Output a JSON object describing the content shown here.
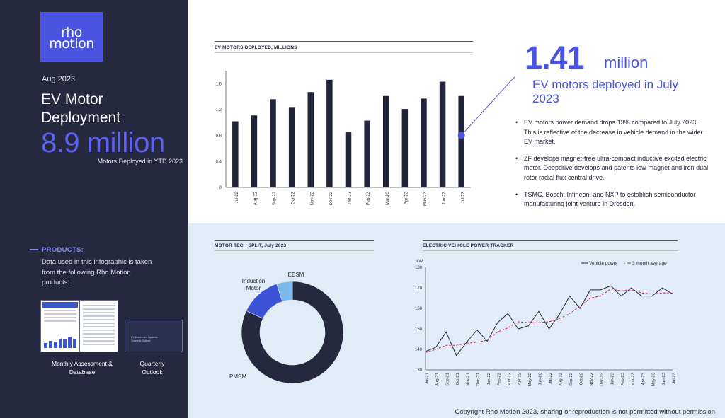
{
  "sidebar": {
    "logo_line1": "rho",
    "logo_line2": "motion",
    "period": "Aug 2023",
    "title": "EV Motor Deployment",
    "big_number": "8.9 million",
    "big_caption": "Motors Deployed in YTD 2023",
    "products_heading": "PRODUCTS:",
    "products_text": "Data used in this infographic is taken from the following Rho Motion products:",
    "product_1": "Monthly Assessment & Database",
    "product_2": "Quarterly Outlook",
    "product_3_cover_title": "EV Motors and Systems Quarterly Outlook"
  },
  "highlight": {
    "number": "1.41",
    "unit": "million",
    "caption": "EV motors deployed in July 2023",
    "bullets": [
      "EV motors power demand drops 13% compared to July 2023. This is reflective of the decrease in vehicle demand in the wider EV market.",
      "ZF develops magnet-free ultra-compact inductive excited electric motor. Deepdrive develops and patents low-magnet and iron dual rotor radial flux central drive.",
      "TSMC, Bosch, Infineon, and NXP to establish semiconductor manufacturing joint venture in Dresden."
    ]
  },
  "footer": "Copyright Rho Motion 2023, sharing or reproduction is not permitted without permission",
  "colors": {
    "navy": "#262840",
    "accent": "#4a54e0",
    "light_panel": "#e1ecf7",
    "induction": "#3c52d6",
    "eesm": "#7cb8ea"
  },
  "chart_data": [
    {
      "type": "bar",
      "title": "EV MOTORS DEPLOYED, MILLIONS",
      "categories": [
        "Jul-22",
        "Aug-22",
        "Sep-22",
        "Oct-22",
        "Nov-22",
        "Dec-22",
        "Jan-23",
        "Feb-23",
        "Mar-23",
        "Apr-23",
        "May-23",
        "Jun-23",
        "Jul-23"
      ],
      "values": [
        1.02,
        1.11,
        1.36,
        1.24,
        1.47,
        1.66,
        0.85,
        1.03,
        1.41,
        1.21,
        1.37,
        1.63,
        1.41
      ],
      "yticks": [
        "0",
        "0.4",
        "0.8",
        "1.2",
        "1.6"
      ],
      "ylim": [
        0,
        1.8
      ],
      "highlight_index": 12
    },
    {
      "type": "pie",
      "title": "MOTOR TECH SPLIT, July 2023",
      "labels": [
        "PMSM",
        "Induction Motor",
        "EESM"
      ],
      "values": [
        82,
        13,
        5
      ]
    },
    {
      "type": "line",
      "title": "ELECTRIC VEHICLE POWER TRACKER",
      "ylabel": "kW",
      "ylim": [
        130,
        180
      ],
      "yticks": [
        "130",
        "140",
        "150",
        "160",
        "170",
        "180"
      ],
      "legend": [
        "Vehicle power",
        "3 month average"
      ],
      "legend_separator": "-",
      "x": [
        "Jul-21",
        "Aug-21",
        "Sep-21",
        "Oct-21",
        "Nov-21",
        "Dec-21",
        "Jan-22",
        "Feb-22",
        "Mar-22",
        "Apr-22",
        "May-22",
        "Jun-22",
        "Jul-22",
        "Aug-22",
        "Sep-22",
        "Oct-22",
        "Nov-22",
        "Dec-22",
        "Jan-23",
        "Feb-23",
        "Mar-23",
        "Apr-23",
        "May-23",
        "Jun-23",
        "Jul-23"
      ],
      "series": [
        {
          "name": "Vehicle power",
          "values": [
            139,
            141,
            148.5,
            137,
            143.5,
            149.5,
            144,
            153,
            157.5,
            150,
            151.5,
            158.5,
            150,
            157,
            166,
            160,
            169,
            169,
            171,
            166,
            170,
            166,
            166,
            170,
            167
          ]
        },
        {
          "name": "3 month average",
          "values": [
            138.5,
            140,
            142,
            142,
            143,
            143.5,
            144.5,
            148.5,
            150.5,
            153.5,
            153,
            153,
            153.5,
            155,
            157.5,
            161,
            165,
            166,
            169.5,
            168.5,
            169,
            167.5,
            167,
            167.5,
            167.5
          ]
        }
      ]
    }
  ]
}
